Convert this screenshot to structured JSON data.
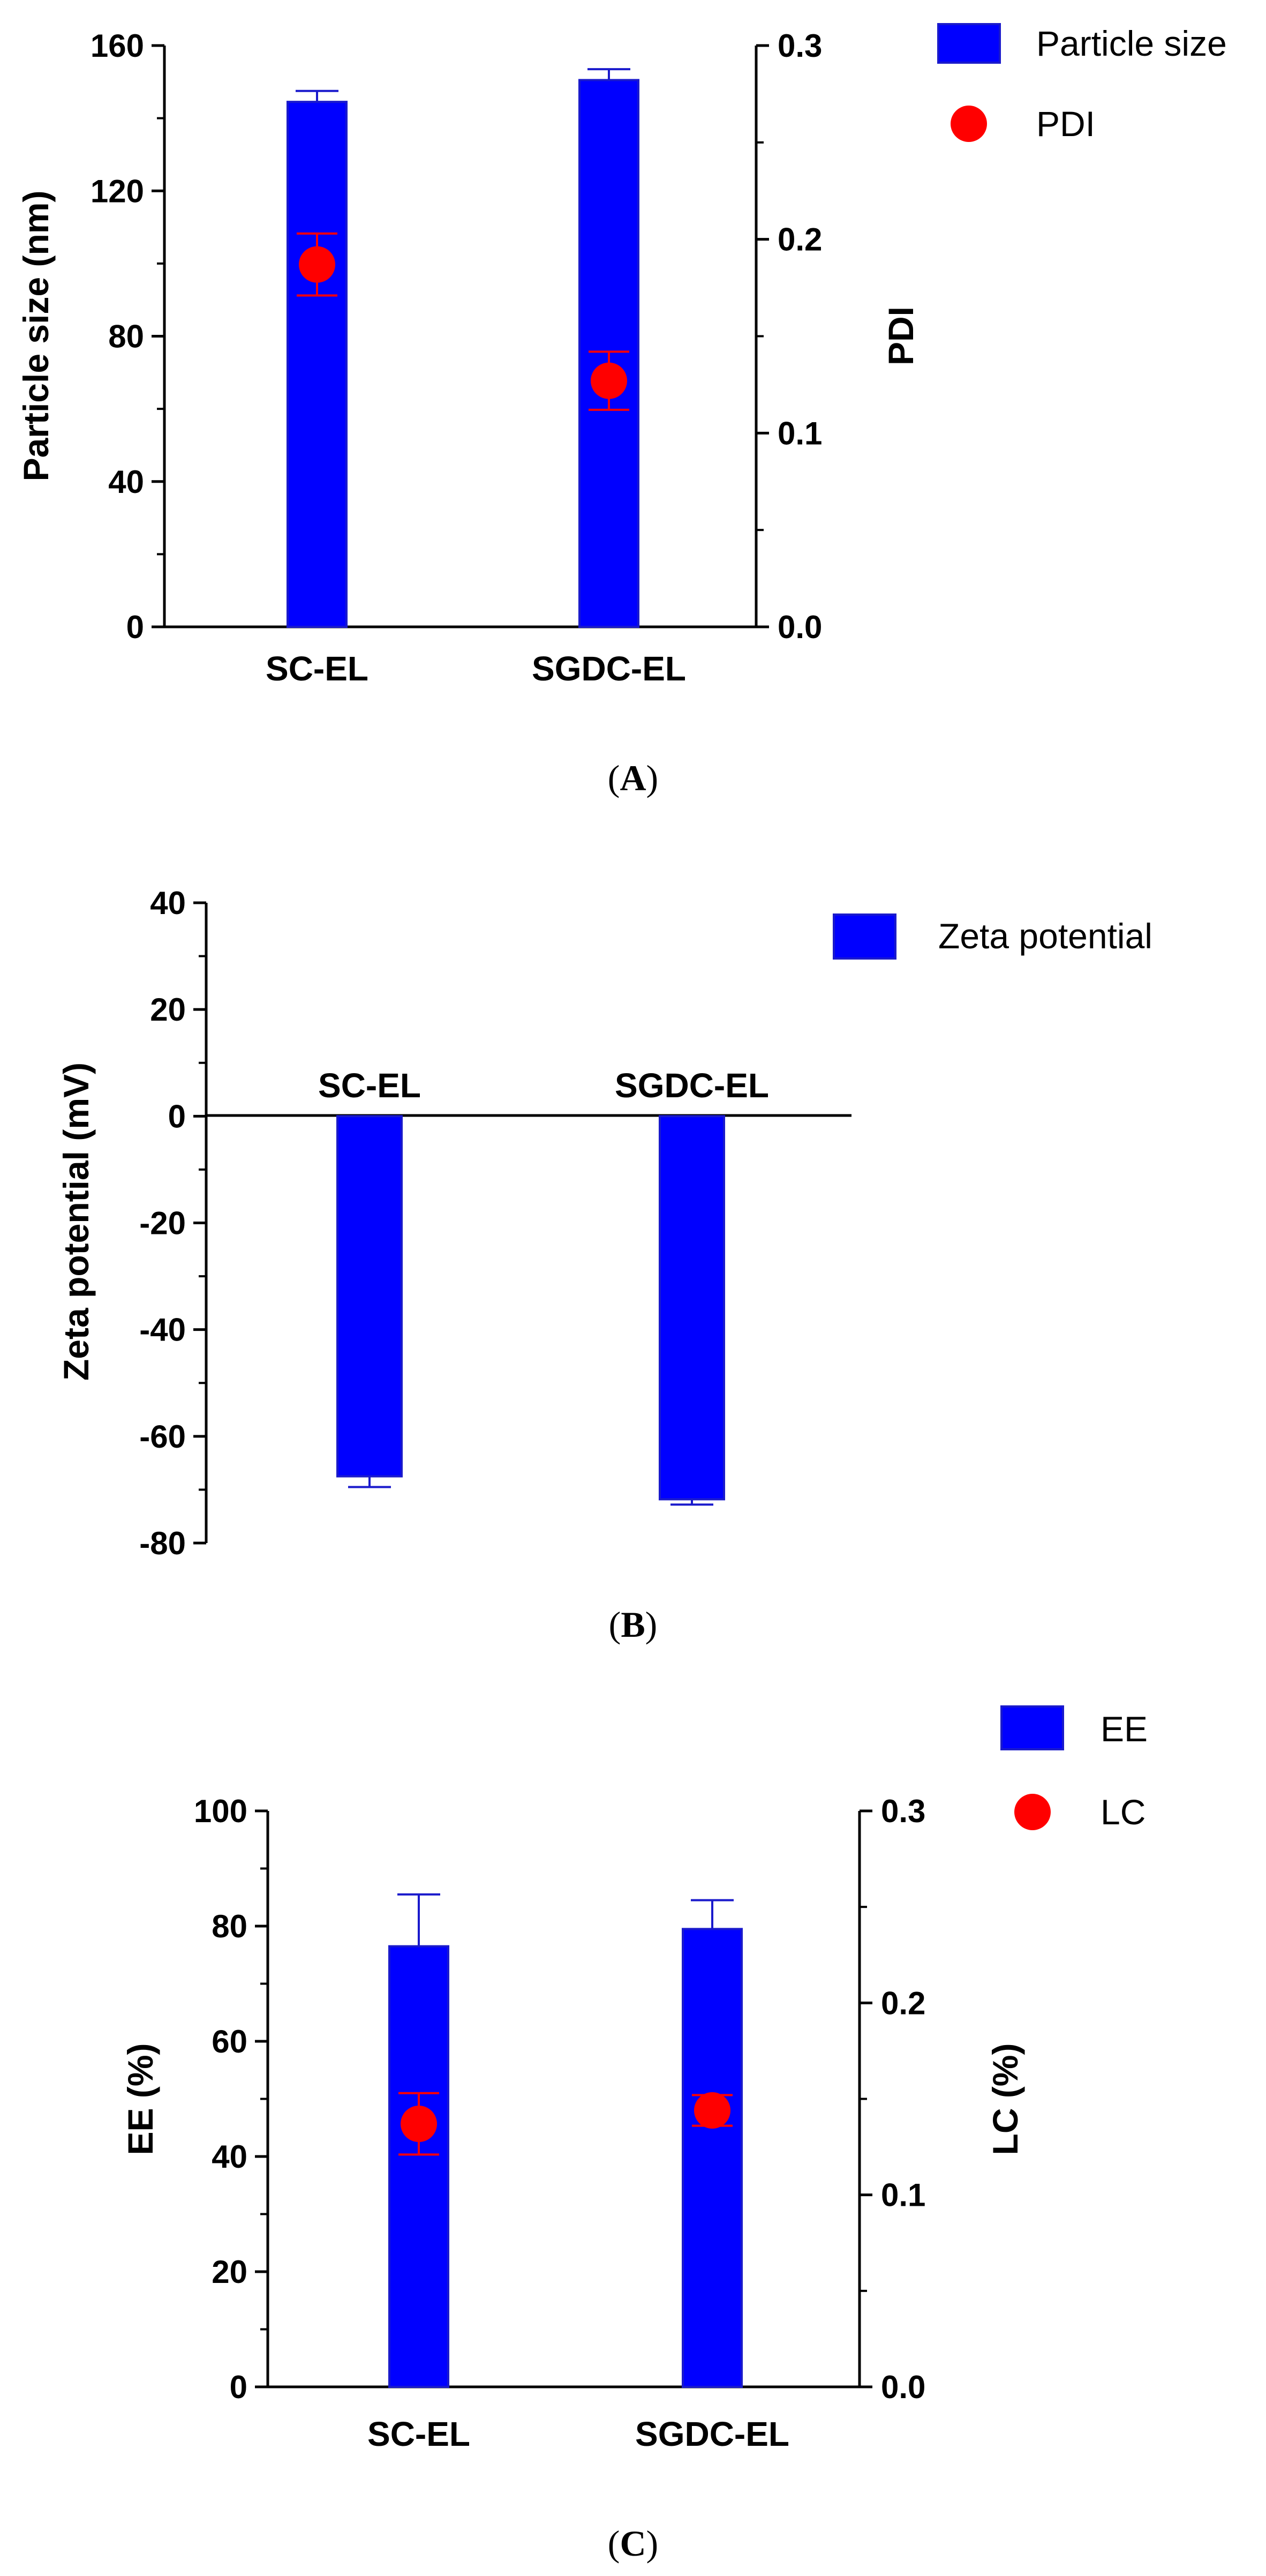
{
  "colors": {
    "bar": "#0000ff",
    "bar_edge": "#1a1acc",
    "point": "#ff0000",
    "axis": "#000000"
  },
  "chart_data": [
    {
      "panel": "A",
      "type": "bar",
      "categories": [
        "SC-EL",
        "SGDC-EL"
      ],
      "left_axis": {
        "label": "Particle size (nm)",
        "range": [
          0,
          160
        ],
        "ticks": [
          0,
          40,
          80,
          120,
          160
        ]
      },
      "right_axis": {
        "label": "PDI",
        "range": [
          0,
          0.3
        ],
        "ticks": [
          "0.0",
          "0.1",
          "0.2",
          "0.3"
        ]
      },
      "series": [
        {
          "name": "Particle size",
          "kind": "bar",
          "axis": "left",
          "values": [
            144.5,
            150.5
          ],
          "errors": [
            3,
            3
          ]
        },
        {
          "name": "PDI",
          "kind": "point",
          "axis": "right",
          "values": [
            0.187,
            0.127
          ],
          "errors": [
            0.016,
            0.015
          ]
        }
      ],
      "legend_position": "top-right"
    },
    {
      "panel": "B",
      "type": "bar",
      "categories": [
        "SC-EL",
        "SGDC-EL"
      ],
      "left_axis": {
        "label": "Zeta potential (mV)",
        "range": [
          -80,
          40
        ],
        "ticks": [
          -80,
          -60,
          -40,
          -20,
          0,
          20,
          40
        ]
      },
      "series": [
        {
          "name": "Zeta potential",
          "kind": "bar",
          "axis": "left",
          "values": [
            -67.5,
            -71.8
          ],
          "errors": [
            2,
            1
          ]
        }
      ],
      "legend_position": "top-right"
    },
    {
      "panel": "C",
      "type": "bar",
      "categories": [
        "SC-EL",
        "SGDC-EL"
      ],
      "left_axis": {
        "label": "EE (%)",
        "range": [
          0,
          100
        ],
        "ticks": [
          0,
          20,
          40,
          60,
          80,
          100
        ]
      },
      "right_axis": {
        "label": "LC (%)",
        "range": [
          0,
          0.3
        ],
        "ticks": [
          "0.0",
          "0.1",
          "0.2",
          "0.3"
        ]
      },
      "series": [
        {
          "name": "EE",
          "kind": "bar",
          "axis": "left",
          "values": [
            76.5,
            79.5
          ],
          "errors": [
            9,
            5
          ]
        },
        {
          "name": "LC",
          "kind": "point",
          "axis": "right",
          "values": [
            0.137,
            0.144
          ],
          "errors": [
            0.016,
            0.008
          ]
        }
      ],
      "legend_position": "top-right"
    }
  ]
}
